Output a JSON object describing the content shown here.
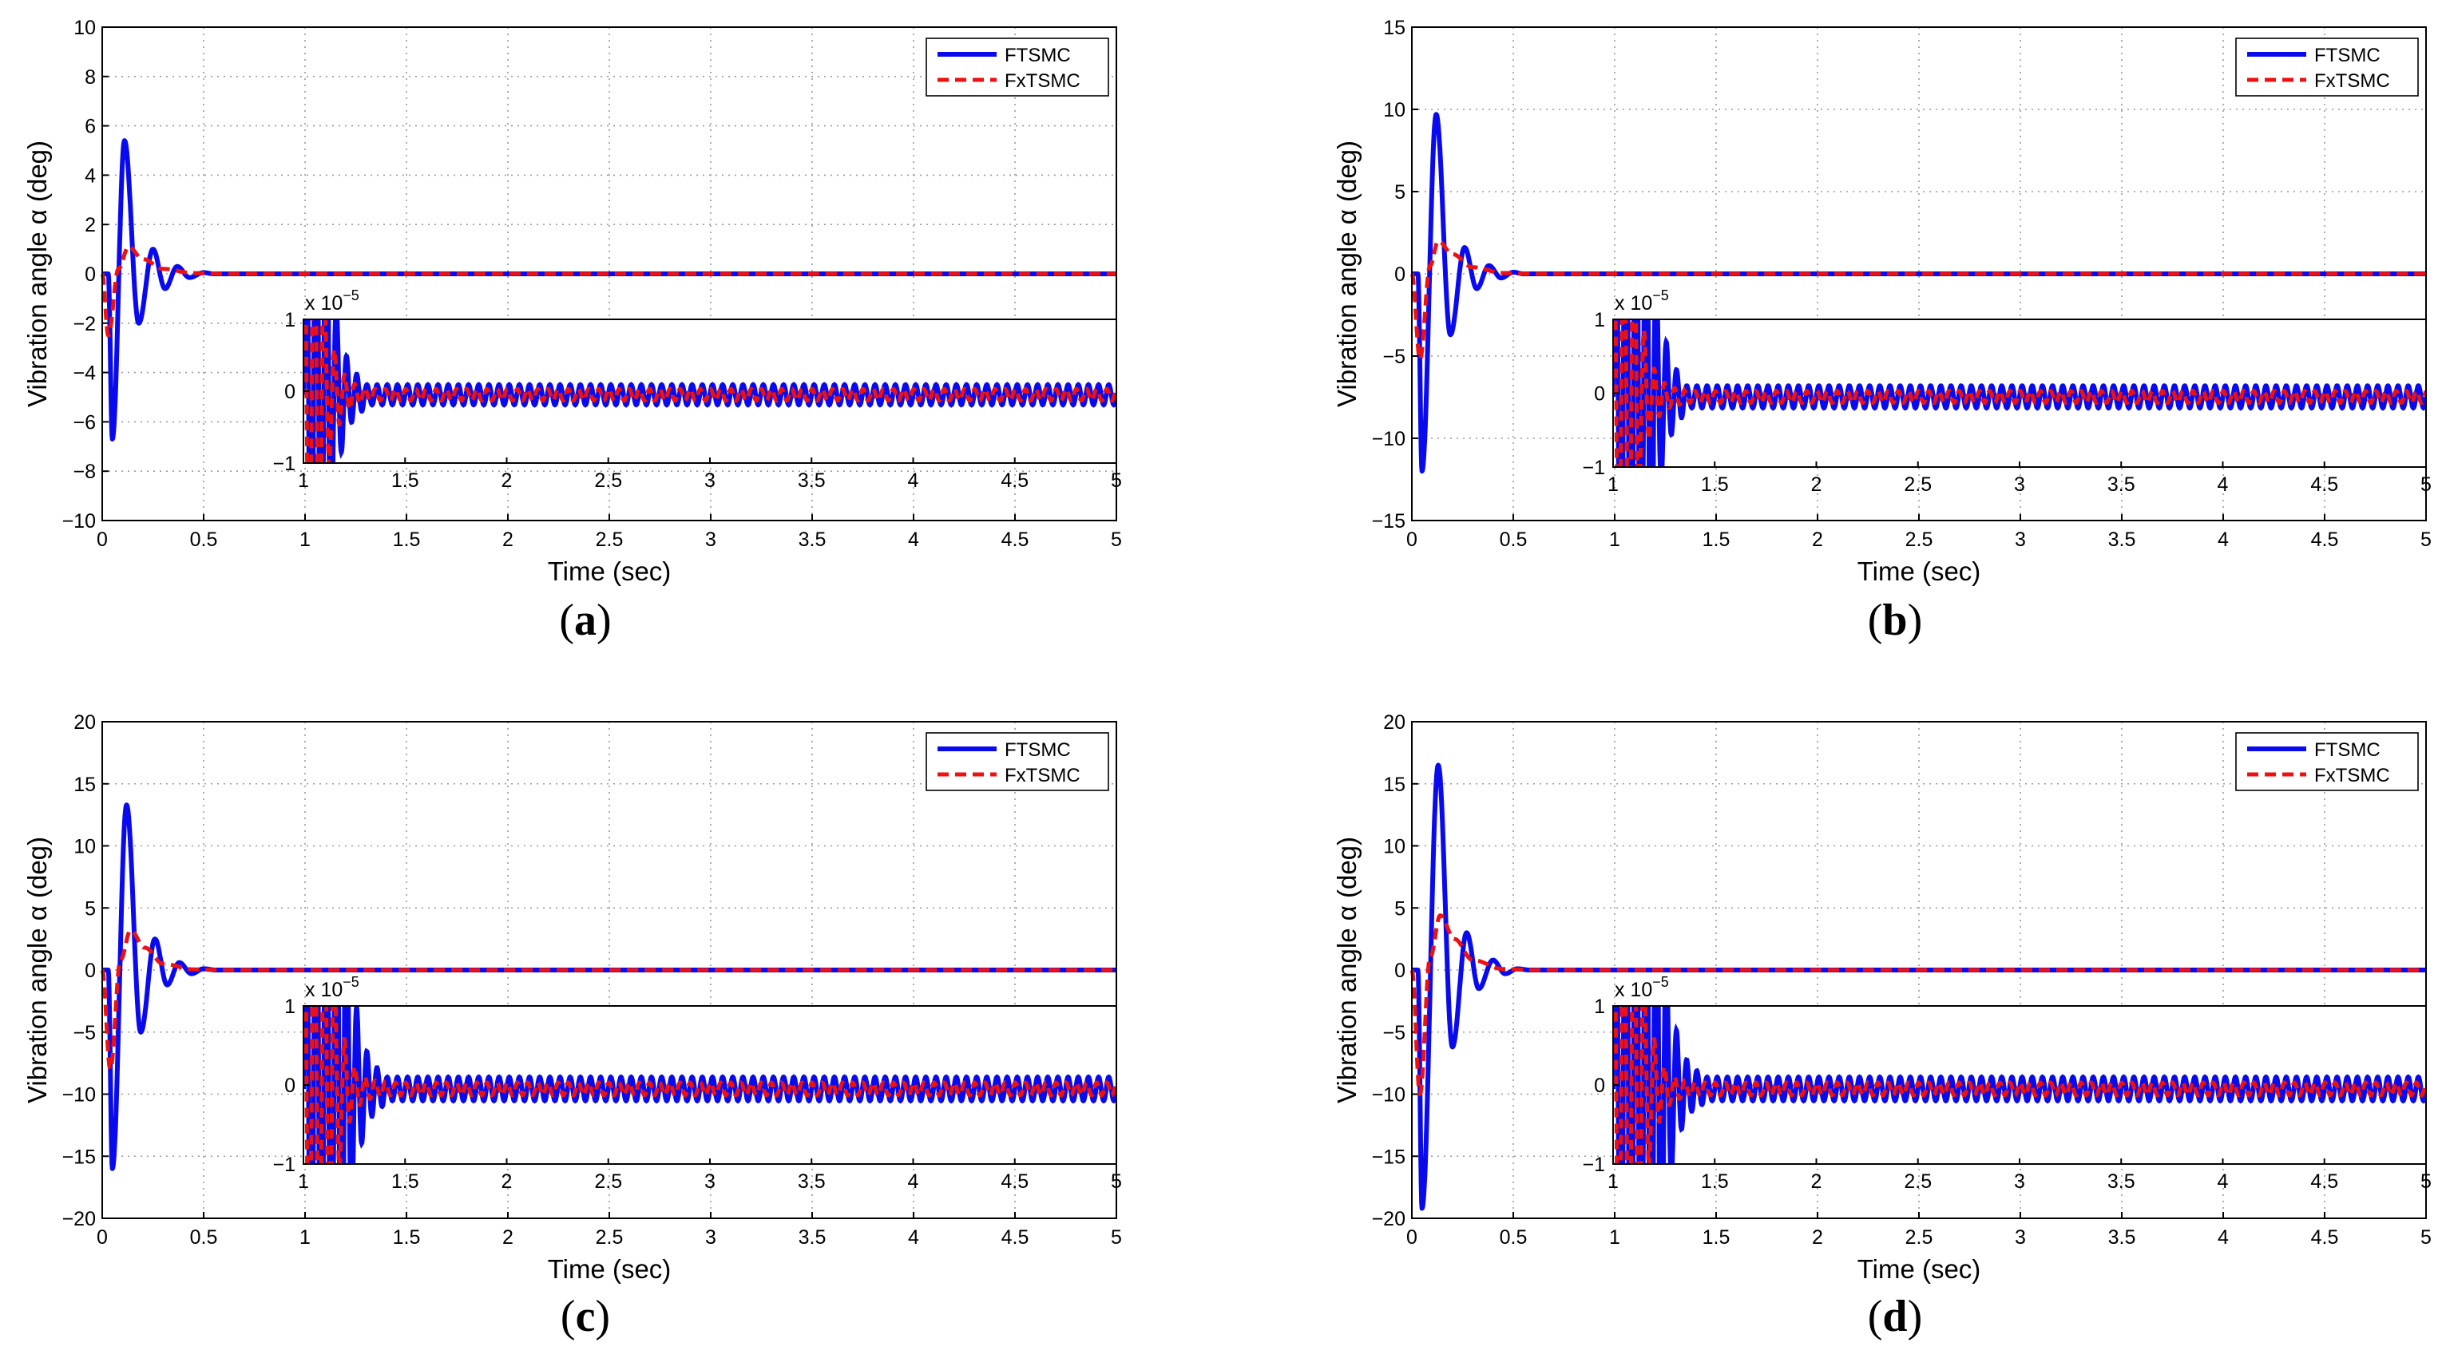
{
  "colors": {
    "ftsmc": "#0a0aee",
    "fxtsmc": "#ee1111"
  },
  "chart_data": [
    {
      "type": "line",
      "caption": "a",
      "xlabel": "Time (sec)",
      "ylabel": "Vibration angle α (deg)",
      "xlim": [
        0,
        5
      ],
      "ylim": [
        -10,
        10
      ],
      "xticks": [
        "0",
        "0.5",
        "1",
        "1.5",
        "2",
        "2.5",
        "3",
        "3.5",
        "4",
        "4.5",
        "5"
      ],
      "yticks": [
        "10",
        "8",
        "6",
        "4",
        "2",
        "0",
        "−2",
        "−4",
        "−6",
        "−8",
        "−10"
      ],
      "legend": [
        "FTSMC",
        "FxTSMC"
      ],
      "series": [
        {
          "name": "FTSMC",
          "peaks": [
            [
              0.03,
              0
            ],
            [
              0.05,
              -6.7
            ],
            [
              0.11,
              5.4
            ],
            [
              0.18,
              -2.0
            ],
            [
              0.25,
              1.0
            ],
            [
              0.31,
              -0.6
            ],
            [
              0.37,
              0.3
            ],
            [
              0.43,
              -0.15
            ],
            [
              0.5,
              0.05
            ],
            [
              0.55,
              0
            ],
            [
              5.0,
              0
            ]
          ]
        },
        {
          "name": "FxTSMC",
          "peaks": [
            [
              0.0,
              0
            ],
            [
              0.03,
              -2.5
            ],
            [
              0.08,
              0.2
            ],
            [
              0.13,
              1.1
            ],
            [
              0.2,
              0.6
            ],
            [
              0.3,
              0.2
            ],
            [
              0.45,
              0.03
            ],
            [
              0.6,
              0
            ],
            [
              5.0,
              0
            ]
          ]
        }
      ],
      "inset": {
        "xlim": [
          1,
          5
        ],
        "ylim": [
          -1,
          1
        ],
        "xticks": [
          "1",
          "1.5",
          "2",
          "2.5",
          "3",
          "3.5",
          "4",
          "4.5",
          "5"
        ],
        "yticks": [
          "1",
          "0",
          "−1"
        ],
        "scale_base": "x 10",
        "scale_exp": "−5",
        "ftsmc_transient_end": 1.13,
        "fxtsmc_transient_end": 1.1,
        "settle_end": 1.3,
        "ftsmc_ripple": 0.14,
        "fxtsmc_ripple": 0.08,
        "ripple_period": 0.05
      }
    },
    {
      "type": "line",
      "caption": "b",
      "xlabel": "Time (sec)",
      "ylabel": "Vibration angle α (deg)",
      "xlim": [
        0,
        5
      ],
      "ylim": [
        -15,
        15
      ],
      "xticks": [
        "0",
        "0.5",
        "1",
        "1.5",
        "2",
        "2.5",
        "3",
        "3.5",
        "4",
        "4.5",
        "5"
      ],
      "yticks": [
        "15",
        "10",
        "5",
        "0",
        "−5",
        "−10",
        "−15"
      ],
      "legend": [
        "FTSMC",
        "FxTSMC"
      ],
      "series": [
        {
          "name": "FTSMC",
          "peaks": [
            [
              0.03,
              0
            ],
            [
              0.05,
              -12.0
            ],
            [
              0.12,
              9.7
            ],
            [
              0.19,
              -3.7
            ],
            [
              0.26,
              1.6
            ],
            [
              0.32,
              -0.9
            ],
            [
              0.38,
              0.5
            ],
            [
              0.44,
              -0.25
            ],
            [
              0.5,
              0.1
            ],
            [
              0.55,
              0
            ],
            [
              5.0,
              0
            ]
          ]
        },
        {
          "name": "FxTSMC",
          "peaks": [
            [
              0.0,
              0
            ],
            [
              0.04,
              -5.2
            ],
            [
              0.09,
              0.5
            ],
            [
              0.13,
              2.0
            ],
            [
              0.2,
              1.2
            ],
            [
              0.3,
              0.4
            ],
            [
              0.45,
              0.05
            ],
            [
              0.6,
              0
            ],
            [
              5.0,
              0
            ]
          ]
        }
      ],
      "inset": {
        "xlim": [
          1,
          5
        ],
        "ylim": [
          -1,
          1
        ],
        "xticks": [
          "1",
          "1.5",
          "2",
          "2.5",
          "3",
          "3.5",
          "4",
          "4.5",
          "5"
        ],
        "yticks": [
          "1",
          "0",
          "−1"
        ],
        "scale_base": "x 10",
        "scale_exp": "−5",
        "ftsmc_transient_end": 1.2,
        "fxtsmc_transient_end": 1.12,
        "settle_end": 1.35,
        "ftsmc_ripple": 0.15,
        "fxtsmc_ripple": 0.08,
        "ripple_period": 0.05
      }
    },
    {
      "type": "line",
      "caption": "c",
      "xlabel": "Time (sec)",
      "ylabel": "Vibration angle α (deg)",
      "xlim": [
        0,
        5
      ],
      "ylim": [
        -20,
        20
      ],
      "xticks": [
        "0",
        "0.5",
        "1",
        "1.5",
        "2",
        "2.5",
        "3",
        "3.5",
        "4",
        "4.5",
        "5"
      ],
      "yticks": [
        "20",
        "15",
        "10",
        "5",
        "0",
        "−5",
        "−10",
        "−15",
        "−20"
      ],
      "legend": [
        "FTSMC",
        "FxTSMC"
      ],
      "series": [
        {
          "name": "FTSMC",
          "peaks": [
            [
              0.03,
              0
            ],
            [
              0.05,
              -16.0
            ],
            [
              0.12,
              13.3
            ],
            [
              0.19,
              -5.0
            ],
            [
              0.26,
              2.5
            ],
            [
              0.32,
              -1.2
            ],
            [
              0.38,
              0.6
            ],
            [
              0.44,
              -0.3
            ],
            [
              0.5,
              0.1
            ],
            [
              0.56,
              0
            ],
            [
              5.0,
              0
            ]
          ]
        },
        {
          "name": "FxTSMC",
          "peaks": [
            [
              0.0,
              0
            ],
            [
              0.04,
              -8.0
            ],
            [
              0.09,
              0.8
            ],
            [
              0.14,
              3.2
            ],
            [
              0.21,
              1.8
            ],
            [
              0.3,
              0.5
            ],
            [
              0.45,
              0.05
            ],
            [
              0.6,
              0
            ],
            [
              5.0,
              0
            ]
          ]
        }
      ],
      "inset": {
        "xlim": [
          1,
          5
        ],
        "ylim": [
          -1,
          1
        ],
        "xticks": [
          "1",
          "1.5",
          "2",
          "2.5",
          "3",
          "3.5",
          "4",
          "4.5",
          "5"
        ],
        "yticks": [
          "1",
          "0",
          "−1"
        ],
        "scale_base": "x 10",
        "scale_exp": "−5",
        "ftsmc_transient_end": 1.22,
        "fxtsmc_transient_end": 1.15,
        "settle_end": 1.4,
        "ftsmc_ripple": 0.15,
        "fxtsmc_ripple": 0.08,
        "ripple_period": 0.05
      }
    },
    {
      "type": "line",
      "caption": "d",
      "xlabel": "Time (sec)",
      "ylabel": "Vibration angle α (deg)",
      "xlim": [
        0,
        5
      ],
      "ylim": [
        -20,
        20
      ],
      "xticks": [
        "0",
        "0.5",
        "1",
        "1.5",
        "2",
        "2.5",
        "3",
        "3.5",
        "4",
        "4.5",
        "5"
      ],
      "yticks": [
        "20",
        "15",
        "10",
        "5",
        "0",
        "−5",
        "−10",
        "−15",
        "−20"
      ],
      "legend": [
        "FTSMC",
        "FxTSMC"
      ],
      "series": [
        {
          "name": "FTSMC",
          "peaks": [
            [
              0.03,
              0
            ],
            [
              0.05,
              -19.2
            ],
            [
              0.13,
              16.5
            ],
            [
              0.2,
              -6.2
            ],
            [
              0.27,
              3.0
            ],
            [
              0.33,
              -1.5
            ],
            [
              0.4,
              0.8
            ],
            [
              0.46,
              -0.3
            ],
            [
              0.52,
              0.1
            ],
            [
              0.58,
              0
            ],
            [
              5.0,
              0
            ]
          ]
        },
        {
          "name": "FxTSMC",
          "peaks": [
            [
              0.0,
              0
            ],
            [
              0.04,
              -10.0
            ],
            [
              0.09,
              1.0
            ],
            [
              0.14,
              4.4
            ],
            [
              0.21,
              2.5
            ],
            [
              0.3,
              0.8
            ],
            [
              0.45,
              0.08
            ],
            [
              0.6,
              0
            ],
            [
              5.0,
              0
            ]
          ]
        }
      ],
      "inset": {
        "xlim": [
          1,
          5
        ],
        "ylim": [
          -1,
          1
        ],
        "xticks": [
          "1",
          "1.5",
          "2",
          "2.5",
          "3",
          "3.5",
          "4",
          "4.5",
          "5"
        ],
        "yticks": [
          "1",
          "0",
          "−1"
        ],
        "scale_base": "x 10",
        "scale_exp": "−5",
        "ftsmc_transient_end": 1.25,
        "fxtsmc_transient_end": 1.15,
        "settle_end": 1.45,
        "ftsmc_ripple": 0.15,
        "fxtsmc_ripple": 0.08,
        "ripple_period": 0.05
      }
    }
  ]
}
